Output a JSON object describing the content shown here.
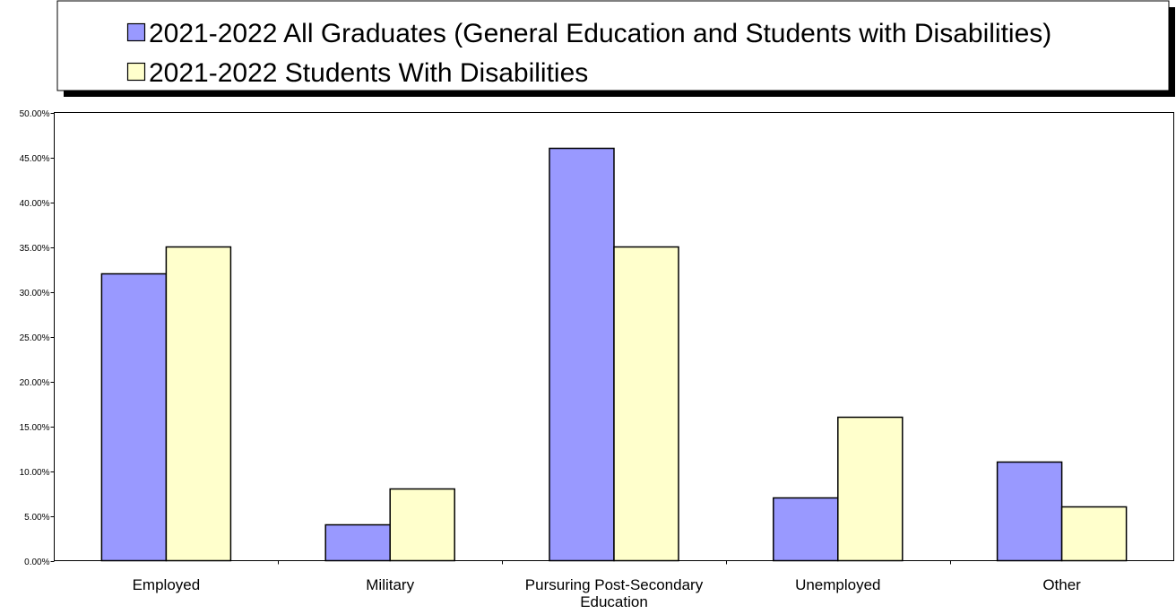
{
  "chart_data": {
    "type": "bar",
    "title": "",
    "xlabel": "",
    "ylabel": "",
    "ylim": [
      0,
      0.5
    ],
    "y_ticks": [
      0,
      0.05,
      0.1,
      0.15,
      0.2,
      0.25,
      0.3,
      0.35,
      0.4,
      0.45,
      0.5
    ],
    "y_tick_labels": [
      "0.00%",
      "5.00%",
      "10.00%",
      "15.00%",
      "20.00%",
      "25.00%",
      "30.00%",
      "35.00%",
      "40.00%",
      "45.00%",
      "50.00%"
    ],
    "categories": [
      "Employed",
      "Military",
      "Pursuring Post-Secondary Education",
      "Unemployed",
      "Other"
    ],
    "category_lines": [
      [
        "Employed"
      ],
      [
        "Military"
      ],
      [
        "Pursuring Post-Secondary",
        "Education"
      ],
      [
        "Unemployed"
      ],
      [
        "Other"
      ]
    ],
    "series": [
      {
        "name": "2021-2022 All Graduates (General Education and Students with Disabilities)",
        "color": "#9999ff",
        "values": [
          0.32,
          0.04,
          0.46,
          0.07,
          0.11
        ]
      },
      {
        "name": "2021-2022 Students With Disabilities",
        "color": "#ffffcc",
        "values": [
          0.35,
          0.08,
          0.35,
          0.16,
          0.06
        ]
      }
    ],
    "grid": false,
    "legend_position": "top",
    "legend_shadow_color": "#000000",
    "bar_edge_color": "#000000"
  }
}
